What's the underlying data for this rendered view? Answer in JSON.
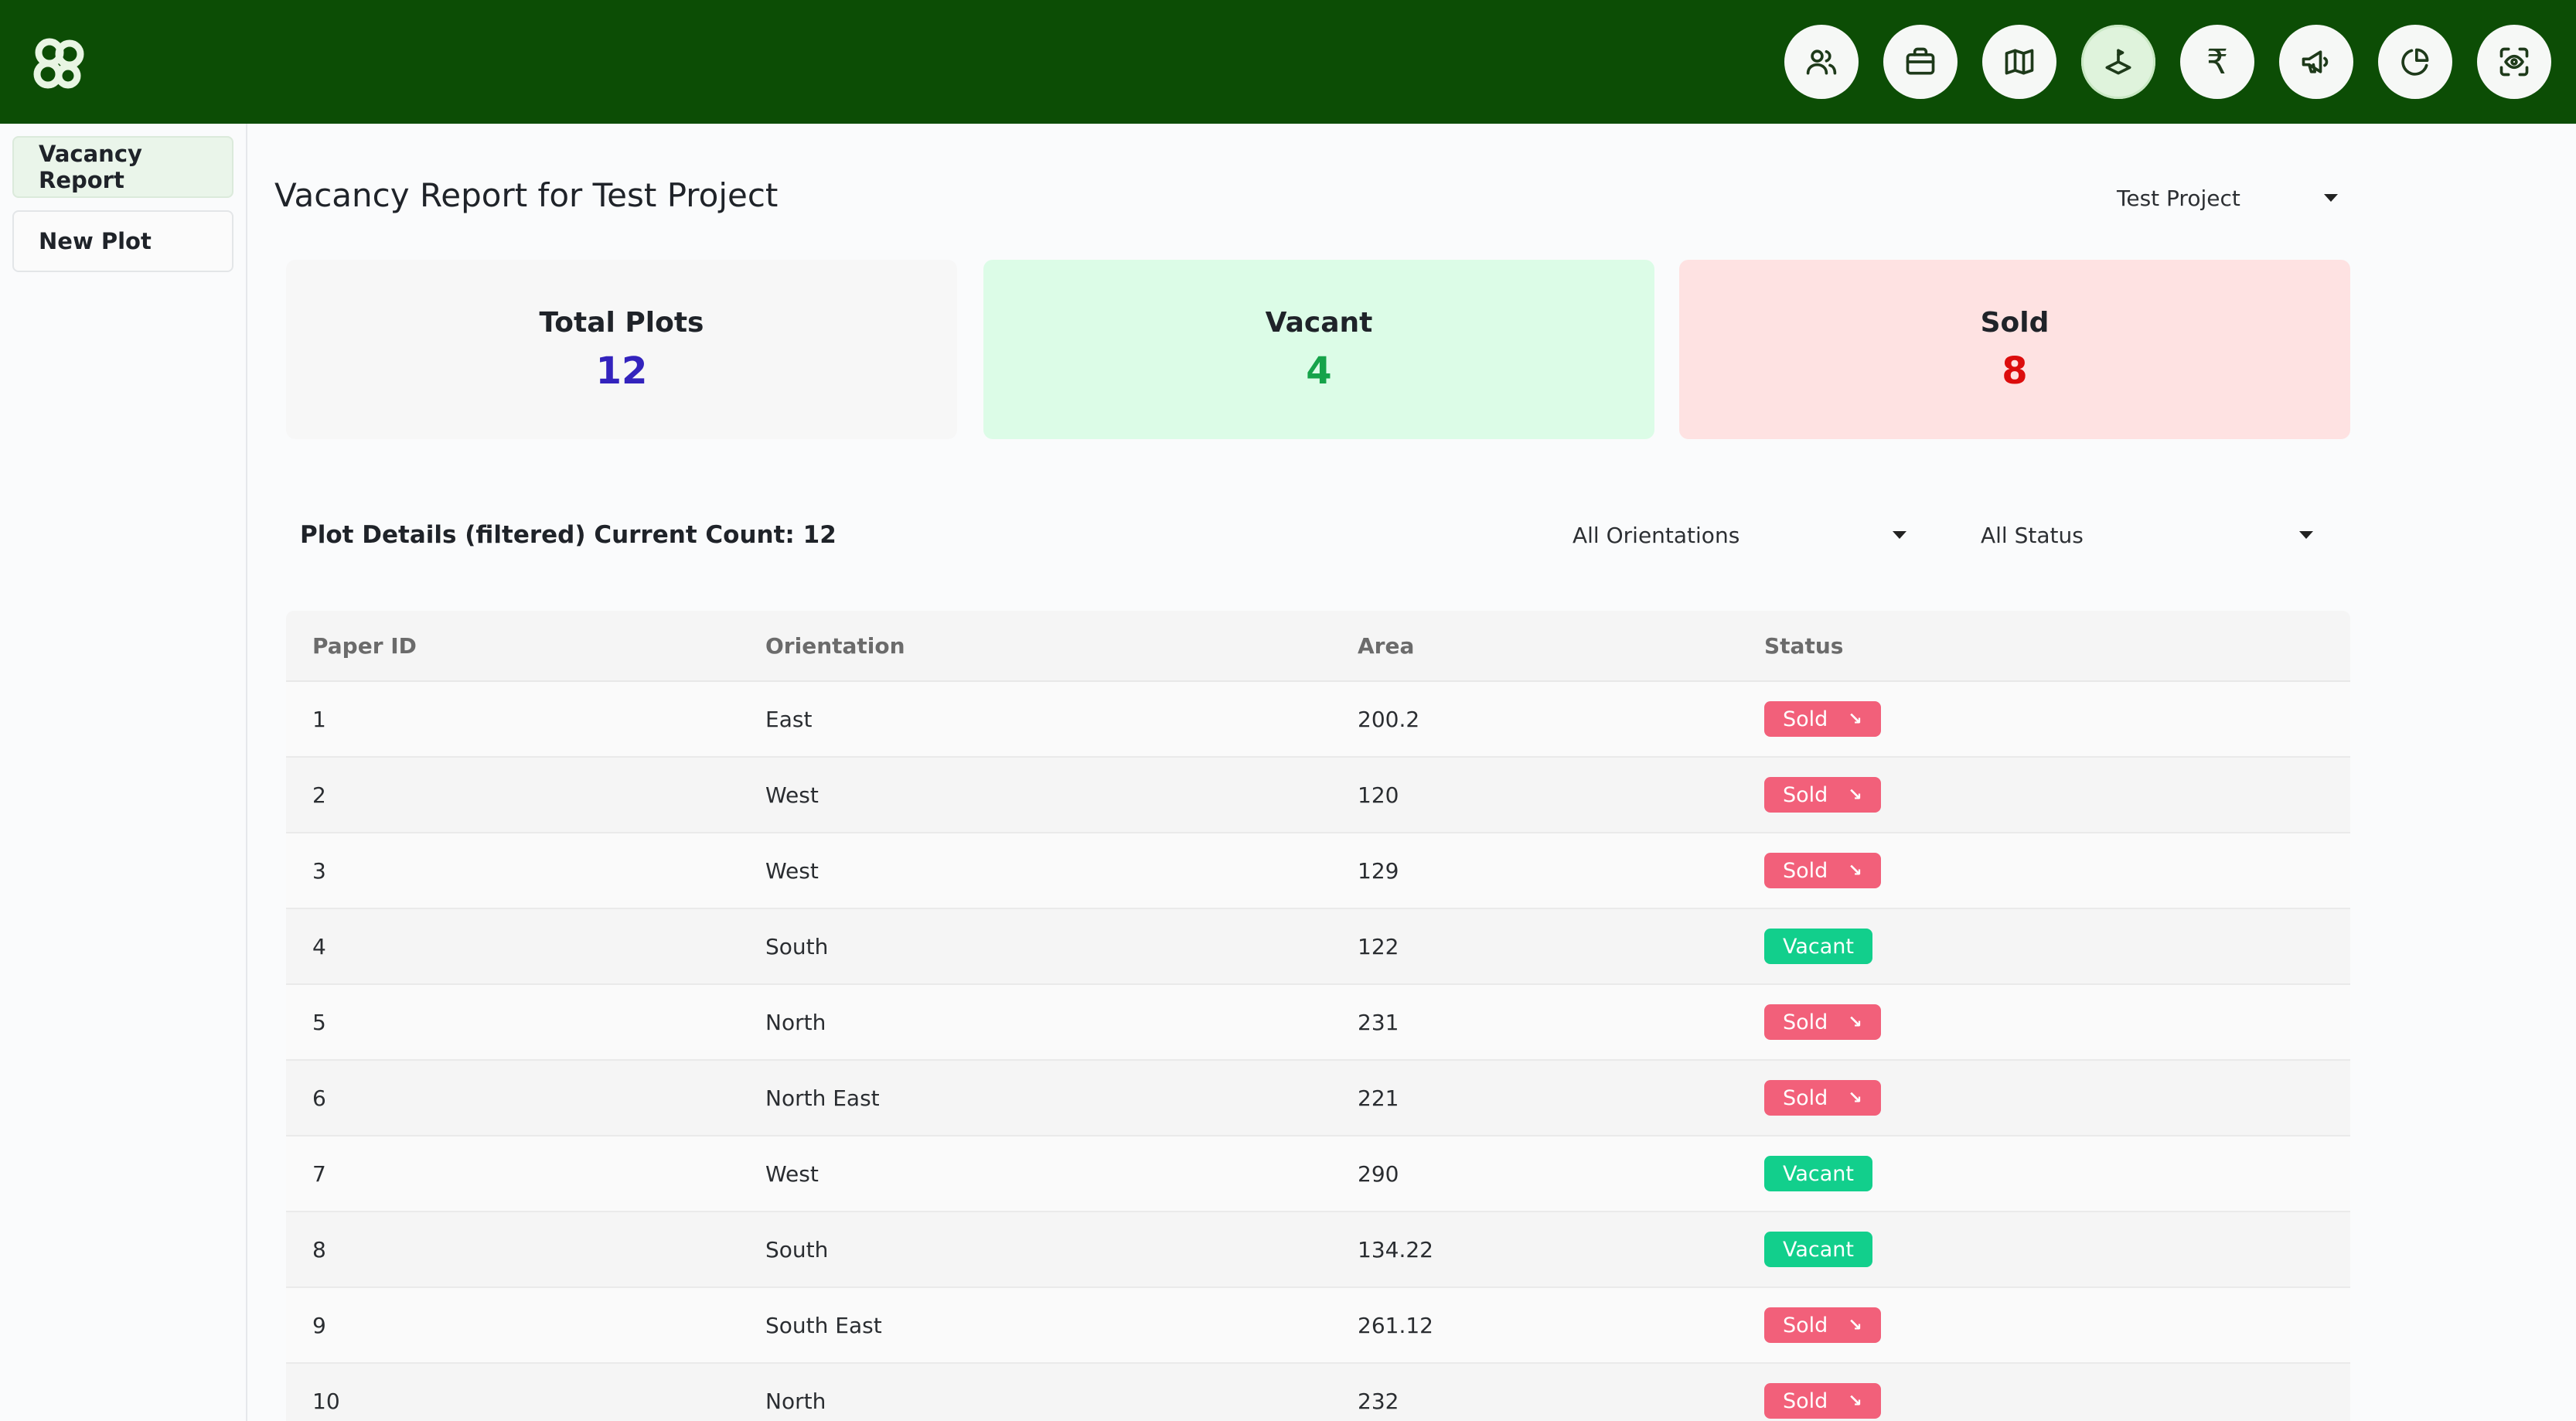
{
  "header": {
    "nav": [
      {
        "icon": "users-icon"
      },
      {
        "icon": "briefcase-icon"
      },
      {
        "icon": "map-icon"
      },
      {
        "icon": "plot-icon",
        "active": true
      },
      {
        "icon": "rupee-icon",
        "glyph": "₹"
      },
      {
        "icon": "megaphone-icon"
      },
      {
        "icon": "pie-chart-icon"
      },
      {
        "icon": "scan-eye-icon"
      }
    ]
  },
  "sidebar": {
    "items": [
      {
        "label": "Vacancy Report",
        "active": true
      },
      {
        "label": "New Plot",
        "active": false
      }
    ]
  },
  "main": {
    "title": "Vacancy Report for Test Project",
    "project_select": "Test Project",
    "cards": {
      "total": {
        "label": "Total Plots",
        "value": "12"
      },
      "vacant": {
        "label": "Vacant",
        "value": "4"
      },
      "sold": {
        "label": "Sold",
        "value": "8"
      }
    },
    "details_title": "Plot Details (filtered) Current Count: 12",
    "orientation_filter": "All Orientations",
    "status_filter": "All Status",
    "table": {
      "headers": [
        "Paper ID",
        "Orientation",
        "Area",
        "Status"
      ],
      "rows": [
        {
          "id": "1",
          "orientation": "East",
          "area": "200.2",
          "status": "Sold"
        },
        {
          "id": "2",
          "orientation": "West",
          "area": "120",
          "status": "Sold"
        },
        {
          "id": "3",
          "orientation": "West",
          "area": "129",
          "status": "Sold"
        },
        {
          "id": "4",
          "orientation": "South",
          "area": "122",
          "status": "Vacant"
        },
        {
          "id": "5",
          "orientation": "North",
          "area": "231",
          "status": "Sold"
        },
        {
          "id": "6",
          "orientation": "North East",
          "area": "221",
          "status": "Sold"
        },
        {
          "id": "7",
          "orientation": "West",
          "area": "290",
          "status": "Vacant"
        },
        {
          "id": "8",
          "orientation": "South",
          "area": "134.22",
          "status": "Vacant"
        },
        {
          "id": "9",
          "orientation": "South East",
          "area": "261.12",
          "status": "Sold"
        },
        {
          "id": "10",
          "orientation": "North",
          "area": "232",
          "status": "Sold"
        }
      ]
    }
  },
  "colors": {
    "header_bg": "#0c4d05",
    "sold": "#f2607a",
    "vacant": "#12cf8c",
    "total_value": "#3323bd"
  }
}
